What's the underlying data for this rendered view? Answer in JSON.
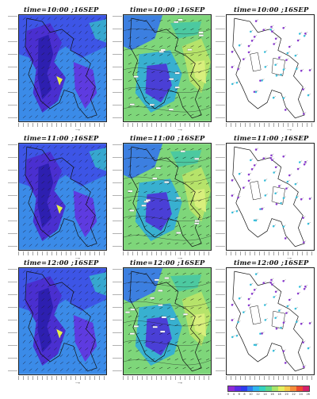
{
  "rows": [
    {
      "time": "time=10:00 ;16SEP"
    },
    {
      "time": "time=11:00 ;16SEP"
    },
    {
      "time": "time=12:00 ;16SEP"
    }
  ],
  "colors": {
    "fieldA": [
      "#2d1fb0",
      "#4a2fd0",
      "#5e3be0",
      "#3d55e6",
      "#3b8be8",
      "#37a7cf"
    ],
    "fieldB": [
      "#3c7fe0",
      "#38b0d0",
      "#4cc9a0",
      "#7ed67a",
      "#b6e36a",
      "#d8ef7c"
    ],
    "stations": [
      "#8f3bd8",
      "#3cc8e6"
    ],
    "colorbar": [
      "#8f2bd6",
      "#5a2be6",
      "#2d3cee",
      "#2e7cf0",
      "#2fb4ef",
      "#34d2c0",
      "#5ed88a",
      "#a7e56a",
      "#e4ef5f",
      "#f6c94a",
      "#f58d3a",
      "#ee4a2e",
      "#d6206c"
    ]
  },
  "colorbar_ticks": [
    "0",
    "4",
    "6",
    "8",
    "10",
    "12",
    "14",
    "16",
    "18",
    "20",
    "22",
    "24",
    "26"
  ]
}
